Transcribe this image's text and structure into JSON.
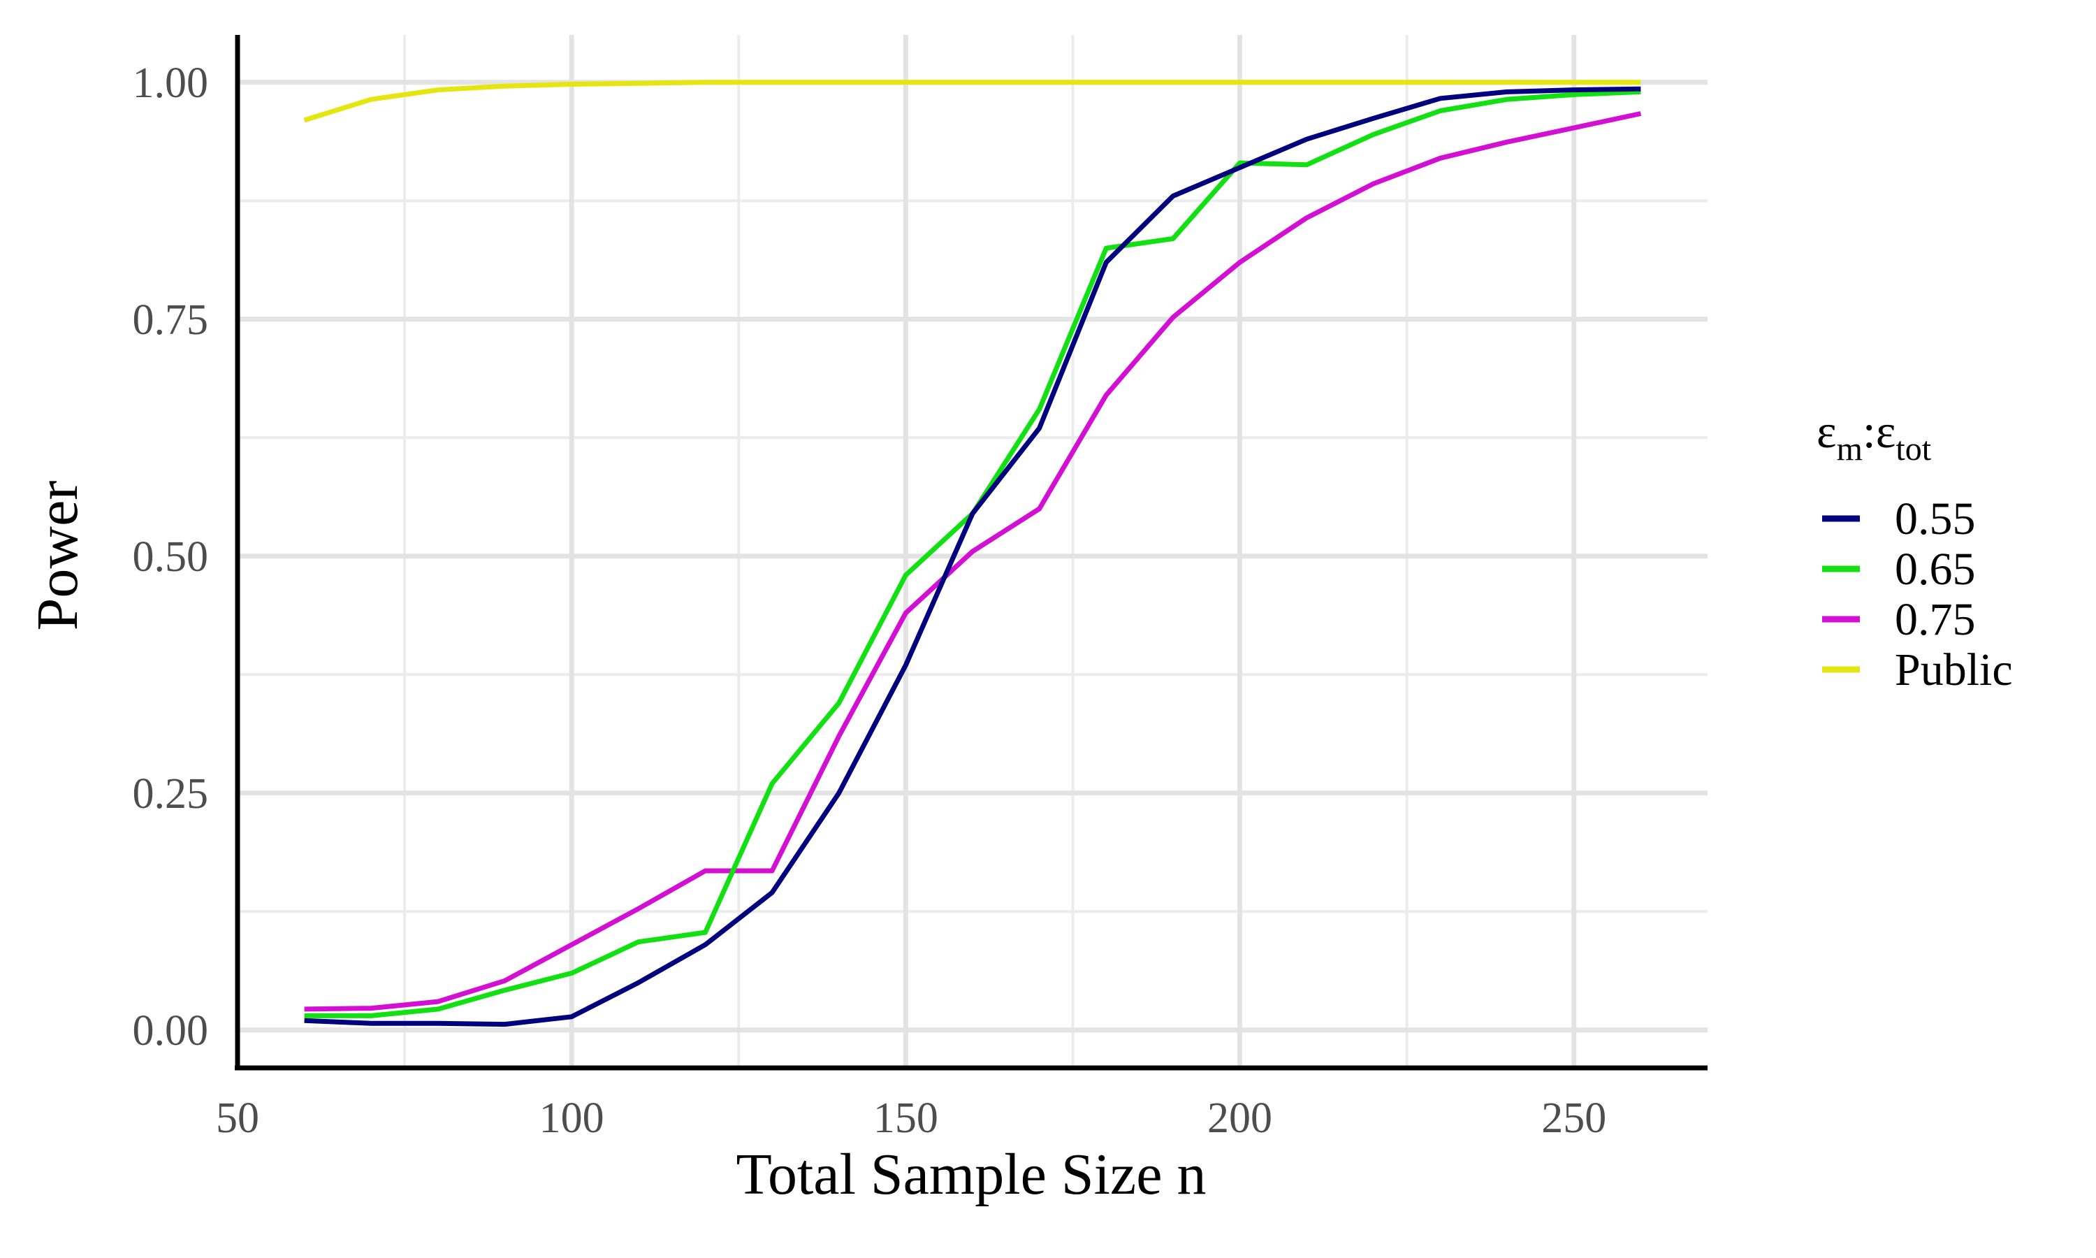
{
  "chart_data": {
    "type": "line",
    "title": "",
    "xlabel": "Total Sample Size n",
    "ylabel": "Power",
    "xlim": [
      50,
      270
    ],
    "ylim": [
      -0.04,
      1.05
    ],
    "x_ticks": [
      "50",
      "100",
      "150",
      "200",
      "250"
    ],
    "y_ticks": [
      "0.00",
      "0.25",
      "0.50",
      "0.75",
      "1.00"
    ],
    "grid": true,
    "legend_position": "right",
    "legend_title": {
      "base1": "ε",
      "sub1": "m",
      "sep": ":",
      "base2": "ε",
      "sub2": "tot"
    },
    "x": [
      60,
      70,
      80,
      90,
      100,
      110,
      120,
      130,
      140,
      150,
      160,
      170,
      180,
      190,
      200,
      210,
      220,
      230,
      240,
      250,
      260
    ],
    "series": [
      {
        "name": "0.55",
        "color": "#00007f",
        "values": [
          0.01,
          0.007,
          0.007,
          0.006,
          0.014,
          0.05,
          0.09,
          0.145,
          0.25,
          0.385,
          0.545,
          0.635,
          0.81,
          0.88,
          0.91,
          0.94,
          0.962,
          0.983,
          0.99,
          0.992,
          0.993
        ]
      },
      {
        "name": "0.65",
        "color": "#12e012",
        "values": [
          0.015,
          0.015,
          0.022,
          0.042,
          0.06,
          0.093,
          0.103,
          0.26,
          0.345,
          0.48,
          0.545,
          0.655,
          0.825,
          0.835,
          0.915,
          0.913,
          0.945,
          0.97,
          0.982,
          0.987,
          0.99
        ]
      },
      {
        "name": "0.75",
        "color": "#d30fd3",
        "values": [
          0.022,
          0.023,
          0.03,
          0.052,
          0.09,
          0.128,
          0.168,
          0.168,
          0.31,
          0.44,
          0.505,
          0.55,
          0.67,
          0.752,
          0.81,
          0.857,
          0.893,
          0.92,
          0.937,
          0.952,
          0.967
        ]
      },
      {
        "name": "Public",
        "color": "#e5e510",
        "values": [
          0.96,
          0.982,
          0.992,
          0.996,
          0.998,
          0.999,
          1.0,
          1.0,
          1.0,
          1.0,
          1.0,
          1.0,
          1.0,
          1.0,
          1.0,
          1.0,
          1.0,
          1.0,
          1.0,
          1.0,
          1.0
        ]
      }
    ]
  }
}
